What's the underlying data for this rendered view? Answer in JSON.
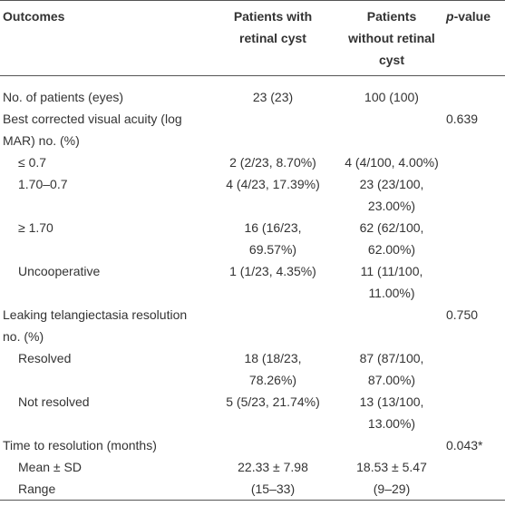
{
  "header": {
    "columns": [
      [
        "Outcomes"
      ],
      [
        "Patients with",
        "retinal cyst"
      ],
      [
        "Patients",
        "without retinal",
        "cyst"
      ],
      [
        "p-value"
      ]
    ]
  },
  "table": {
    "rows": [
      [
        [
          "No. of patients (eyes)"
        ],
        [
          "23 (23)"
        ],
        [
          "100 (100)"
        ],
        []
      ],
      [
        [
          "Best corrected visual acuity (log",
          "MAR) no. (%)"
        ],
        [],
        [],
        [
          "0.639"
        ]
      ],
      [
        [
          "≤ 0.7"
        ],
        [
          "2 (2/23, 8.70%)"
        ],
        [
          "4 (4/100, 4.00%)"
        ],
        []
      ],
      [
        [
          "1.70–0.7"
        ],
        [
          "4 (4/23, 17.39%)"
        ],
        [
          "23 (23/100,",
          "23.00%)"
        ],
        []
      ],
      [
        [
          "≥ 1.70"
        ],
        [
          "16 (16/23,",
          "69.57%)"
        ],
        [
          "62 (62/100,",
          "62.00%)"
        ],
        []
      ],
      [
        [
          "Uncooperative"
        ],
        [
          "1 (1/23, 4.35%)"
        ],
        [
          "11 (11/100,",
          "11.00%)"
        ],
        []
      ],
      [
        [
          "Leaking telangiectasia resolution",
          "no. (%)"
        ],
        [],
        [],
        [
          "0.750"
        ]
      ],
      [
        [
          "Resolved"
        ],
        [
          "18 (18/23,",
          "78.26%)"
        ],
        [
          "87 (87/100,",
          "87.00%)"
        ],
        []
      ],
      [
        [
          "Not resolved"
        ],
        [
          "5 (5/23, 21.74%)"
        ],
        [
          "13 (13/100,",
          "13.00%)"
        ],
        []
      ],
      [
        [
          "Time to resolution (months)"
        ],
        [],
        [],
        [
          "0.043*"
        ]
      ],
      [
        [
          "Mean ± SD"
        ],
        [
          "22.33 ± 7.98"
        ],
        [
          "18.53 ± 5.47"
        ],
        []
      ],
      [
        [
          "Range"
        ],
        [
          "(15–33)"
        ],
        [
          "(9–29)"
        ],
        []
      ]
    ]
  }
}
